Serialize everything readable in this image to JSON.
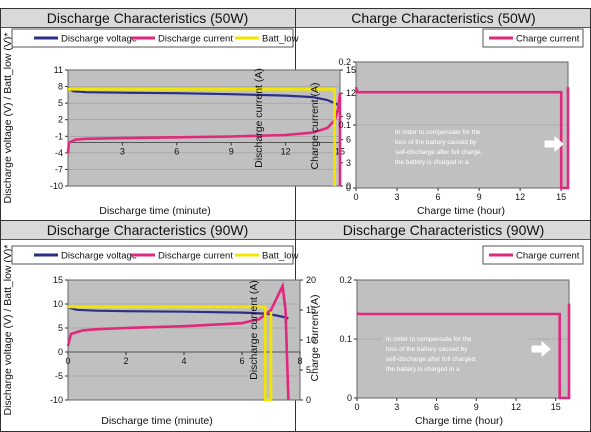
{
  "chart_data": [
    {
      "type": "line",
      "title": "Discharge Characteristics (50W)",
      "xlabel": "Discharge time (minute)",
      "ylabel": "Discharge voltage (V) / Batt_low (V)*",
      "y2label": "Discharge current (A)",
      "xlim": [
        0,
        15
      ],
      "ylim": [
        -10,
        14
      ],
      "y2lim": [
        0,
        15
      ],
      "xticks": [
        "3",
        "6",
        "9",
        "12",
        "15"
      ],
      "yticks": [
        "11",
        "8",
        "5",
        "2",
        "-1",
        "-4",
        "-7",
        "-10"
      ],
      "y2ticks": [
        "15",
        "12",
        "9",
        "6",
        "3",
        "0"
      ],
      "legend": "top",
      "series": [
        {
          "name": "Discharge voltage",
          "color": "#2b2f86",
          "axis": "left",
          "x": [
            0,
            0.3,
            1,
            3,
            6,
            9,
            12,
            13.5,
            14.3,
            14.8,
            15.0
          ],
          "y": [
            10.2,
            9.6,
            9.4,
            9.3,
            9.2,
            9.0,
            8.7,
            8.4,
            7.8,
            7.0,
            6.5
          ]
        },
        {
          "name": "Discharge current",
          "color": "#e0287e",
          "axis": "right",
          "x": [
            0,
            0.05,
            0.4,
            1,
            3,
            6,
            9,
            12,
            13.5,
            14.3,
            14.7,
            14.9,
            15.0,
            15.0
          ],
          "y": [
            4.2,
            5.6,
            6.0,
            6.1,
            6.2,
            6.3,
            6.4,
            6.6,
            6.9,
            7.5,
            8.5,
            10.0,
            12.0,
            0
          ]
        },
        {
          "name": "Batt_low",
          "color": "#f2e600",
          "axis": "left",
          "x": [
            0,
            14.7,
            14.7
          ],
          "y": [
            10.0,
            10.0,
            -10
          ]
        }
      ]
    },
    {
      "type": "line",
      "title": "Charge Characteristics (50W)",
      "xlabel": "Charge time (hour)",
      "ylabel": "Charge current (A)",
      "xlim": [
        0,
        15.5
      ],
      "ylim": [
        0,
        0.25
      ],
      "xticks": [
        "0",
        "3",
        "6",
        "9",
        "12",
        "15"
      ],
      "yticks": [
        "0.2",
        "0.1",
        "0"
      ],
      "legend": "top-right",
      "annotation": "In order to compensate for the loss of the battery caused by self-discharge after full charge, the battery is charged in a trickle charging mode  with pulse current.",
      "series": [
        {
          "name": "Charge current",
          "color": "#e0287e",
          "x": [
            0,
            0.1,
            1,
            5,
            10,
            14,
            15.0,
            15.0,
            15.5,
            15.5
          ],
          "y": [
            0.2,
            0.19,
            0.19,
            0.19,
            0.19,
            0.19,
            0.19,
            0.0,
            0.0,
            0.2
          ]
        }
      ]
    },
    {
      "type": "line",
      "title": "Discharge Characteristics (90W)",
      "xlabel": "Discharge time (minute)",
      "ylabel": "Discharge voltage (V) / Batt_low (V)*",
      "y2label": "Discharge current (A)",
      "xlim": [
        0,
        8
      ],
      "ylim": [
        -10,
        15
      ],
      "y2lim": [
        0,
        20
      ],
      "xticks": [
        "0",
        "2",
        "4",
        "6",
        "8"
      ],
      "yticks": [
        "15",
        "10",
        "5",
        "0",
        "-5",
        "-10"
      ],
      "y2ticks": [
        "20",
        "15",
        "10",
        "5",
        "0"
      ],
      "legend": "top",
      "series": [
        {
          "name": "Discharge voltage",
          "color": "#2b2f86",
          "axis": "left",
          "x": [
            0,
            0.3,
            1,
            2,
            4,
            6,
            6.8,
            7.2,
            7.5,
            7.6
          ],
          "y": [
            9.3,
            8.8,
            8.6,
            8.5,
            8.4,
            8.2,
            8.0,
            7.6,
            7.2,
            7.0
          ]
        },
        {
          "name": "Discharge current",
          "color": "#e0287e",
          "axis": "right",
          "x": [
            0,
            0.1,
            0.5,
            1,
            2,
            4,
            6,
            6.6,
            7.0,
            7.3,
            7.4,
            7.5,
            7.6
          ],
          "y": [
            9.0,
            11.0,
            11.6,
            11.8,
            12.0,
            12.3,
            12.8,
            13.5,
            15.0,
            18.0,
            19.0,
            15.0,
            0
          ]
        },
        {
          "name": "Batt_low",
          "color": "#f2e600",
          "axis": "left",
          "x": [
            0,
            6.8,
            6.8,
            7.0,
            7.0
          ],
          "y": [
            9.4,
            9.4,
            -10,
            -10,
            8.4
          ]
        }
      ]
    },
    {
      "type": "line",
      "title": "Discharge Characteristics (90W)",
      "xlabel": "Charge time (hour)",
      "ylabel": "Charge current (A)",
      "xlim": [
        0,
        16
      ],
      "ylim": [
        0,
        0.25
      ],
      "xticks": [
        "0",
        "3",
        "6",
        "9",
        "12",
        "15"
      ],
      "yticks": [
        "0.2",
        "0.1",
        "0"
      ],
      "legend": "top-right",
      "annotation": "In order to compensate for the loss of the battery caused by self-discharge after full charged, the battery is  charged in a trickle charging mode with pulse current.",
      "series": [
        {
          "name": "Charge current",
          "color": "#e0287e",
          "x": [
            0,
            0.1,
            1,
            5,
            10,
            14,
            15.3,
            15.3,
            16,
            16
          ],
          "y": [
            0.18,
            0.178,
            0.178,
            0.178,
            0.178,
            0.178,
            0.178,
            0.0,
            0.0,
            0.2
          ]
        }
      ]
    }
  ]
}
